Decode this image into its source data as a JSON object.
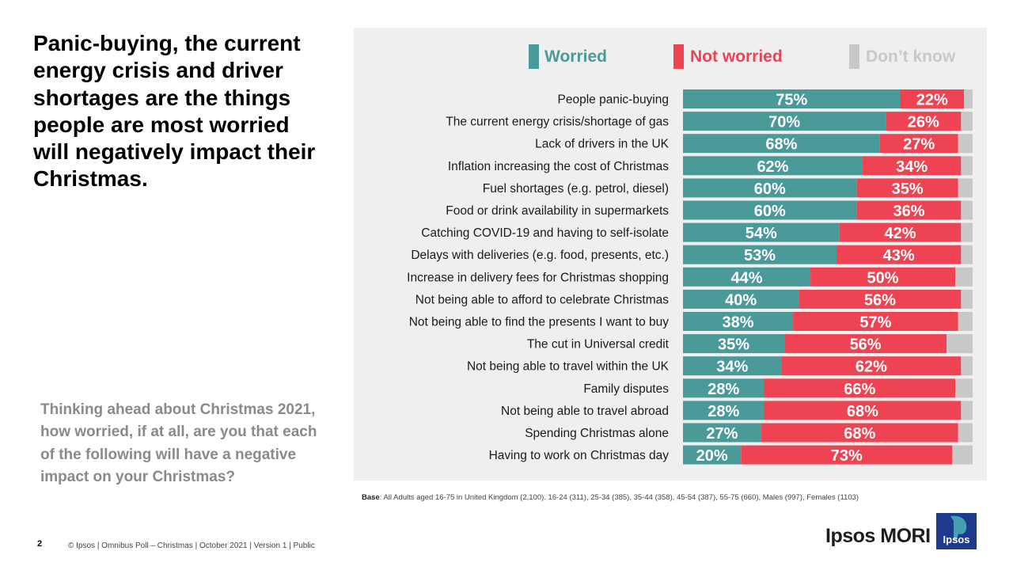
{
  "headline": "Panic-buying, the current energy crisis and driver shortages are the things people are most worried will negatively impact their Christmas.",
  "question": "Thinking ahead about Christmas 2021, how worried, if at all, are you that each of the following  will  have a negative impact on your Christmas?",
  "base_label": "Base",
  "base_text": ": All Adults aged 16-75 in United Kingdom (2,100). 16-24 (311), 25-34 (385), 35-44 (358), 45-54 (387), 55-75 (660), Males (997), Females (1103)",
  "page_number": "2",
  "footer": "© Ipsos | Omnibus Poll – Christmas | October 2021 | Version 1 | Public",
  "brand": "Ipsos MORI",
  "logo_text": "Ipsos",
  "colors": {
    "worried": "#4a9a9a",
    "not_worried": "#ee4352",
    "dont_know": "#c8c8c8",
    "panel": "#efefef"
  },
  "chart_data": {
    "type": "bar",
    "orientation": "horizontal",
    "stacked": true,
    "title": "",
    "xlim": [
      0,
      100
    ],
    "legend": "top",
    "categories": [
      "People panic-buying",
      "The current energy crisis/shortage of gas",
      "Lack of drivers in the UK",
      "Inflation increasing the cost of Christmas",
      "Fuel shortages (e.g. petrol, diesel)",
      "Food or drink availability in supermarkets",
      "Catching COVID-19 and having to self-isolate",
      "Delays with deliveries (e.g. food, presents, etc.)",
      "Increase in delivery fees for Christmas shopping",
      "Not being able to afford to celebrate Christmas",
      "Not being able to find the presents I want to buy",
      "The cut in Universal credit",
      "Not being able to travel within the UK",
      "Family disputes",
      "Not being able to travel abroad",
      "Spending Christmas alone",
      "Having to work on Christmas day"
    ],
    "series": [
      {
        "name": "Worried",
        "values": [
          75,
          70,
          68,
          62,
          60,
          60,
          54,
          53,
          44,
          40,
          38,
          35,
          34,
          28,
          28,
          27,
          20
        ]
      },
      {
        "name": "Not worried",
        "values": [
          22,
          26,
          27,
          34,
          35,
          36,
          42,
          43,
          50,
          56,
          57,
          56,
          62,
          66,
          68,
          68,
          73
        ]
      },
      {
        "name": "Don’t know",
        "values": [
          3,
          4,
          5,
          4,
          5,
          4,
          4,
          4,
          6,
          4,
          5,
          9,
          4,
          6,
          4,
          5,
          7
        ]
      }
    ],
    "data_label_suffix": "%"
  }
}
